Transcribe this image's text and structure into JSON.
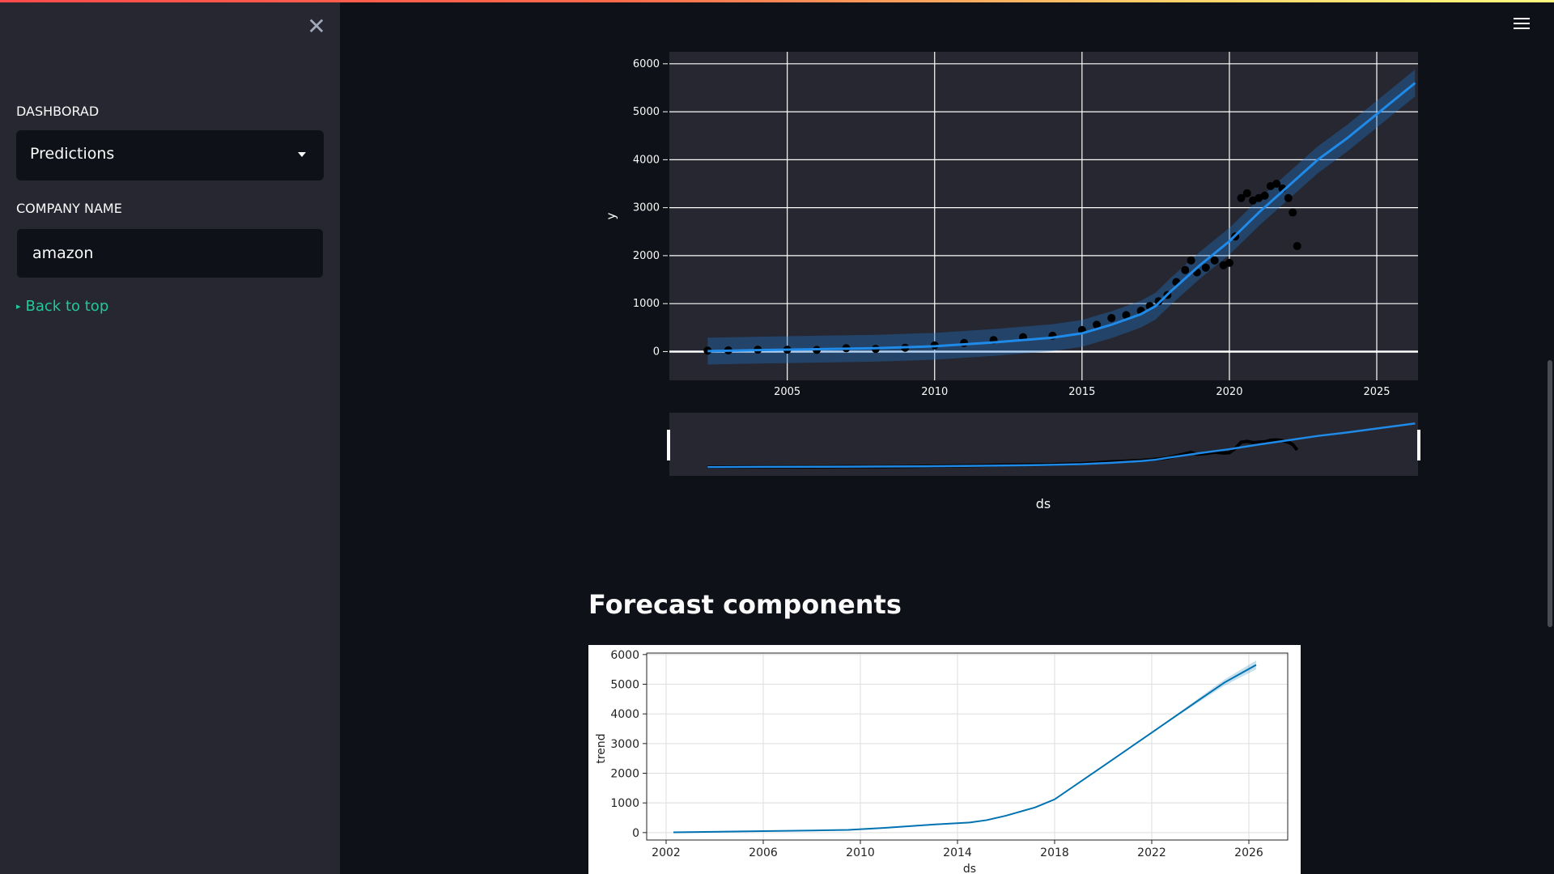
{
  "sidebar": {
    "close_icon": "close-icon",
    "dashboard_label": "DASHBORAD",
    "dashboard_select": {
      "value": "Predictions"
    },
    "company_label": "COMPANY NAME",
    "company_input": {
      "value": "amazon"
    },
    "back_link": "Back to top"
  },
  "header": {
    "menu_icon": "hamburger-menu-icon"
  },
  "colors": {
    "accent_link": "#21c99a",
    "forecast_line": "#1f77d4",
    "component_line": "#0072b2"
  },
  "main": {
    "components_title": "Forecast components"
  },
  "chart_data": [
    {
      "type": "line",
      "xlabel": "ds",
      "ylabel": "y",
      "x_ticks": [
        "2005",
        "2010",
        "2015",
        "2020",
        "2025"
      ],
      "y_ticks": [
        "0",
        "1000",
        "2000",
        "3000",
        "4000",
        "5000",
        "6000"
      ],
      "xlim": [
        2001.0,
        2026.4
      ],
      "ylim": [
        -600,
        6250
      ],
      "grid": true,
      "rangeslider": true,
      "series": [
        {
          "style": "markers",
          "color": "#000000",
          "x": [
            2002.3,
            2003,
            2004,
            2005,
            2006,
            2007,
            2008,
            2009,
            2010,
            2011,
            2012,
            2013,
            2014,
            2015,
            2015.5,
            2016,
            2016.5,
            2017,
            2017.3,
            2017.6,
            2017.9,
            2018.2,
            2018.5,
            2018.7,
            2018.9,
            2019.2,
            2019.5,
            2019.8,
            2020,
            2020.2,
            2020.4,
            2020.6,
            2020.8,
            2021,
            2021.2,
            2021.4,
            2021.6,
            2021.8,
            2022,
            2022.15,
            2022.3
          ],
          "y": [
            20,
            25,
            40,
            40,
            35,
            70,
            55,
            80,
            130,
            180,
            240,
            300,
            330,
            450,
            560,
            700,
            760,
            850,
            950,
            1050,
            1180,
            1450,
            1700,
            1900,
            1650,
            1750,
            1900,
            1800,
            1850,
            2400,
            3200,
            3300,
            3150,
            3200,
            3250,
            3450,
            3500,
            3400,
            3200,
            2900,
            2200
          ]
        },
        {
          "style": "line",
          "x": [
            2002.3,
            2004,
            2006,
            2008,
            2010,
            2012,
            2014,
            2015,
            2016,
            2017,
            2017.5,
            2018,
            2019,
            2020,
            2021,
            2022,
            2023,
            2024,
            2025,
            2026.3
          ],
          "y": [
            10,
            30,
            50,
            70,
            110,
            190,
            290,
            380,
            560,
            780,
            950,
            1250,
            1800,
            2300,
            2900,
            3450,
            4000,
            4450,
            4950,
            5600
          ],
          "interval_width": 280
        }
      ]
    },
    {
      "type": "line",
      "xlabel": "ds",
      "ylabel": "trend",
      "x_ticks": [
        "2002",
        "2006",
        "2010",
        "2014",
        "2018",
        "2022",
        "2026"
      ],
      "y_ticks": [
        "0",
        "1000",
        "2000",
        "3000",
        "4000",
        "5000",
        "6000"
      ],
      "xlim": [
        2001.2,
        2027.6
      ],
      "ylim": [
        -250,
        6050
      ],
      "grid": true,
      "series": [
        {
          "x": [
            2002.3,
            2006,
            2008,
            2009.5,
            2011,
            2013,
            2014.5,
            2015.2,
            2016,
            2017.2,
            2018,
            2020,
            2022,
            2024,
            2025,
            2026.3
          ],
          "y": [
            10,
            50,
            70,
            90,
            160,
            270,
            340,
            420,
            570,
            850,
            1120,
            2240,
            3370,
            4500,
            5060,
            5650
          ]
        }
      ]
    }
  ]
}
